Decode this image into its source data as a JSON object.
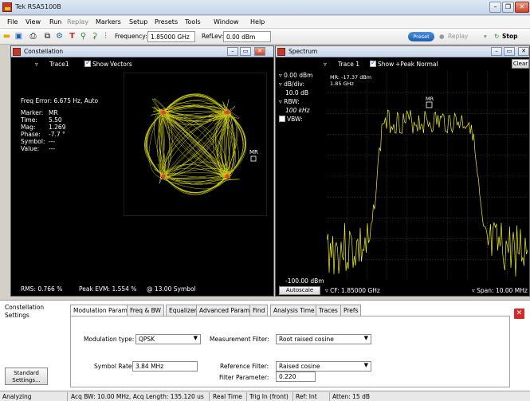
{
  "window": {
    "title": "Tek RSA5100B"
  },
  "menu": [
    "File",
    "View",
    "Run",
    "Replay",
    "Markers",
    "Setup",
    "Presets",
    "Tools",
    "Window",
    "Help"
  ],
  "toolbar": {
    "frequency_label": "Frequency:",
    "frequency_value": "1.85000 GHz",
    "reflev_label": "RefLev:",
    "reflev_value": "0.00 dBm",
    "preset_label": "Preset",
    "replay_label": "Replay",
    "stop_label": "Stop"
  },
  "constellation": {
    "title": "Constellation",
    "trace_label": "Trace1",
    "show_label": "Show",
    "show_mode": "Vectors",
    "freq_error": "Freq Error: 6.675 Hz, Auto",
    "readout": [
      {
        "k": "Marker:",
        "v": "MR"
      },
      {
        "k": "Time:",
        "v": "5.50"
      },
      {
        "k": "Mag:",
        "v": "1.269"
      },
      {
        "k": "Phase:",
        "v": "-7.7 °"
      },
      {
        "k": "Symbol:",
        "v": "---"
      },
      {
        "k": "Value:",
        "v": "---"
      }
    ],
    "marker_label": "MR",
    "rms": "RMS: 0.766 %",
    "peak_evm": "Peak EVM:  1.554 %",
    "symbol_pos": "@  13.00 Symbol"
  },
  "spectrum": {
    "title": "Spectrum",
    "trace_label": "Trace 1",
    "show_label": "Show",
    "show_mode": "+Peak Normal",
    "clear_label": "Clear",
    "ref_level": "0.00 dBm",
    "div_label": "dB/div:",
    "div_value": "10.0 dB",
    "rbw_label": "RBW:",
    "rbw_value": "100 kHz",
    "vbw_label": "VBW:",
    "marker_readout_1": "MR: -17.37 dBm",
    "marker_readout_2": "1.85 GHz",
    "marker_label": "MR",
    "bottom_level": "-100.00 dBm",
    "autoscale_label": "Autoscale",
    "cf": "CF: 1.85000 GHz",
    "span": "Span: 10.00 MHz"
  },
  "settings": {
    "section_title": "Constellation Settings",
    "tabs": [
      "Modulation Params",
      "Freq & BW",
      "Equalizer",
      "Advanced Params",
      "Find",
      "Analysis Time",
      "Traces",
      "Prefs"
    ],
    "mod_type_label": "Modulation type:",
    "mod_type_value": "QPSK",
    "symbol_rate_label": "Symbol Rate:",
    "symbol_rate_value": "3.84 MHz",
    "meas_filter_label": "Measurement Filter:",
    "meas_filter_value": "Root raised cosine",
    "ref_filter_label": "Reference Filter:",
    "ref_filter_value": "Raised cosine",
    "filter_param_label": "Filter Parameter:",
    "filter_param_value": "0.220",
    "standard_btn_1": "Standard",
    "standard_btn_2": "Settings..."
  },
  "status": {
    "state": "Analyzing",
    "acq": "Acq BW: 10.00 MHz, Acq Length: 135.120 us",
    "mode": "Real Time",
    "trig": "Trig In (front)",
    "ref": "Ref: Int",
    "atten": "Atten: 15 dB"
  },
  "colors": {
    "trace": "#f0f020",
    "grid": "#4a4a4a",
    "background": "#000000"
  }
}
